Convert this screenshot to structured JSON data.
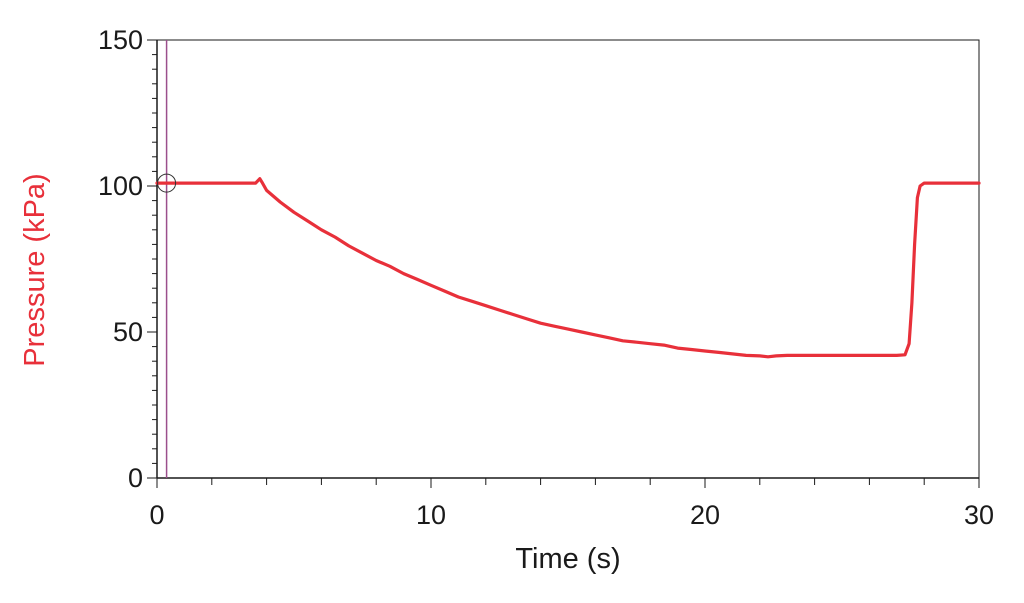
{
  "chart_data": {
    "type": "line",
    "title": "",
    "xlabel": "Time (s)",
    "ylabel": "Pressure (kPa)",
    "xlim": [
      0,
      30
    ],
    "ylim": [
      0,
      150
    ],
    "x_ticks": [
      "0",
      "10",
      "20",
      "30"
    ],
    "y_ticks": [
      "0",
      "50",
      "100",
      "150"
    ],
    "grid": false,
    "legend": "none",
    "colors": {
      "series": "#e8303a",
      "ylabel": "#e8303a",
      "axis": "#1a1a1a",
      "cursor": "#9b4f8c"
    },
    "cursor_x": 0.35,
    "series": [
      {
        "x": [
          0,
          0.5,
          1,
          2,
          3,
          3.6,
          3.75,
          3.85,
          4.0,
          4.5,
          5,
          5.5,
          6,
          6.5,
          7,
          7.5,
          8,
          8.5,
          9,
          9.5,
          10,
          10.5,
          11,
          11.5,
          12,
          12.5,
          13,
          13.5,
          14,
          14.5,
          15,
          15.5,
          16,
          16.5,
          17,
          17.5,
          18,
          18.5,
          19,
          19.5,
          20,
          20.5,
          21,
          21.5,
          22,
          22.3,
          22.6,
          23,
          24,
          25,
          26,
          27,
          27.3,
          27.45,
          27.55,
          27.65,
          27.75,
          27.85,
          28.0,
          28.3,
          29,
          30
        ],
        "y": [
          101,
          101,
          101,
          101,
          101,
          101,
          102.5,
          101,
          98.5,
          94.5,
          91,
          88,
          85,
          82.5,
          79.5,
          77,
          74.5,
          72.5,
          70,
          68,
          66,
          64,
          62,
          60.5,
          59,
          57.5,
          56,
          54.5,
          53,
          52,
          51,
          50,
          49,
          48,
          47,
          46.5,
          46,
          45.5,
          44.5,
          44,
          43.5,
          43,
          42.5,
          42,
          41.8,
          41.5,
          41.8,
          42,
          42,
          42,
          42,
          42,
          42.2,
          46,
          60,
          80,
          96,
          100,
          101,
          101,
          101,
          101
        ]
      }
    ]
  }
}
